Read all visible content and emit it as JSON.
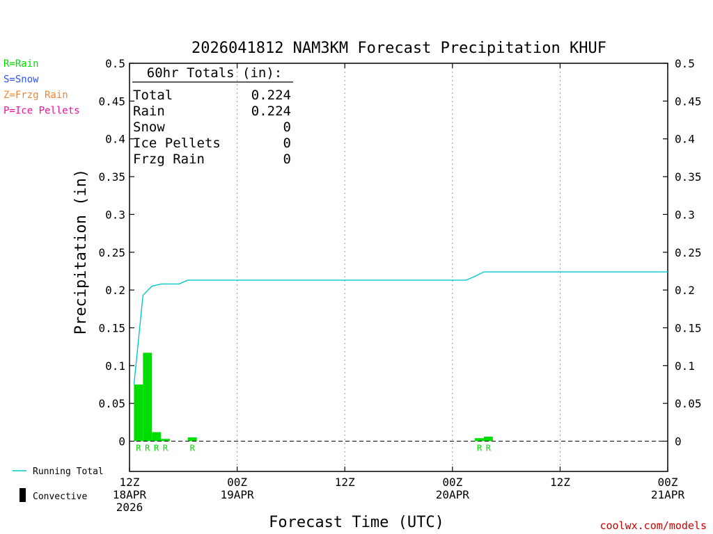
{
  "title": "2026041812 NAM3KM Forecast Precipitation KHUF",
  "watermark": "coolwx.com/models",
  "legend_types": [
    {
      "label": "R=Rain",
      "color": "#00dd00"
    },
    {
      "label": "S=Snow",
      "color": "#3355ee"
    },
    {
      "label": "Z=Frzg Rain",
      "color": "#ee8833"
    },
    {
      "label": "P=Ice Pellets",
      "color": "#ee1199"
    }
  ],
  "legend_bottom": [
    {
      "label": "Running Total",
      "color": "#00c8c8"
    },
    {
      "label": "Convective",
      "color": "#000000"
    }
  ],
  "totals": {
    "header": "60hr Totals (in):",
    "rows": [
      {
        "label": "Total",
        "value": "0.224"
      },
      {
        "label": "Rain",
        "value": "0.224"
      },
      {
        "label": "Snow",
        "value": "0"
      },
      {
        "label": "Ice Pellets",
        "value": "0"
      },
      {
        "label": "Frzg Rain",
        "value": "0"
      }
    ]
  },
  "chart_data": {
    "type": "bar",
    "title": "2026041812 NAM3KM Forecast Precipitation KHUF",
    "xlabel": "Forecast Time (UTC)",
    "ylabel": "Precipitation (in)",
    "ylim": [
      -0.04,
      0.5
    ],
    "xlim_hours": [
      0,
      60
    ],
    "y_ticks": [
      "0",
      "0.05",
      "0.1",
      "0.15",
      "0.2",
      "0.25",
      "0.3",
      "0.35",
      "0.4",
      "0.45",
      "0.5"
    ],
    "x_ticks": [
      {
        "hour": 0,
        "lines": [
          "12Z",
          "18APR",
          "2026"
        ]
      },
      {
        "hour": 12,
        "lines": [
          "00Z",
          "19APR"
        ]
      },
      {
        "hour": 24,
        "lines": [
          "12Z"
        ]
      },
      {
        "hour": 36,
        "lines": [
          "00Z",
          "20APR"
        ]
      },
      {
        "hour": 48,
        "lines": [
          "12Z"
        ]
      },
      {
        "hour": 60,
        "lines": [
          "00Z",
          "21APR"
        ]
      }
    ],
    "grid": "dotted vertical at 12-hour ticks",
    "bar_color": "#00dd00",
    "bars": [
      {
        "start": 0.5,
        "end": 1.5,
        "value": 0.075,
        "label": "R"
      },
      {
        "start": 1.5,
        "end": 2.5,
        "value": 0.117,
        "label": "R"
      },
      {
        "start": 2.5,
        "end": 3.5,
        "value": 0.012,
        "label": "R"
      },
      {
        "start": 3.5,
        "end": 4.5,
        "value": 0.003,
        "label": "R"
      },
      {
        "start": 6.5,
        "end": 7.5,
        "value": 0.005,
        "label": "R"
      },
      {
        "start": 38.5,
        "end": 39.5,
        "value": 0.004,
        "label": "R"
      },
      {
        "start": 39.5,
        "end": 40.5,
        "value": 0.006,
        "label": "R"
      }
    ],
    "running_total": {
      "name": "Running Total",
      "color": "#00c8c8",
      "hours": [
        0.5,
        1.5,
        2.5,
        3.5,
        4.5,
        5.5,
        6.5,
        7.5,
        37.5,
        38.5,
        39.5,
        40.5,
        60
      ],
      "values": [
        0.075,
        0.193,
        0.205,
        0.208,
        0.208,
        0.208,
        0.213,
        0.213,
        0.213,
        0.218,
        0.224,
        0.224,
        0.224
      ]
    }
  }
}
